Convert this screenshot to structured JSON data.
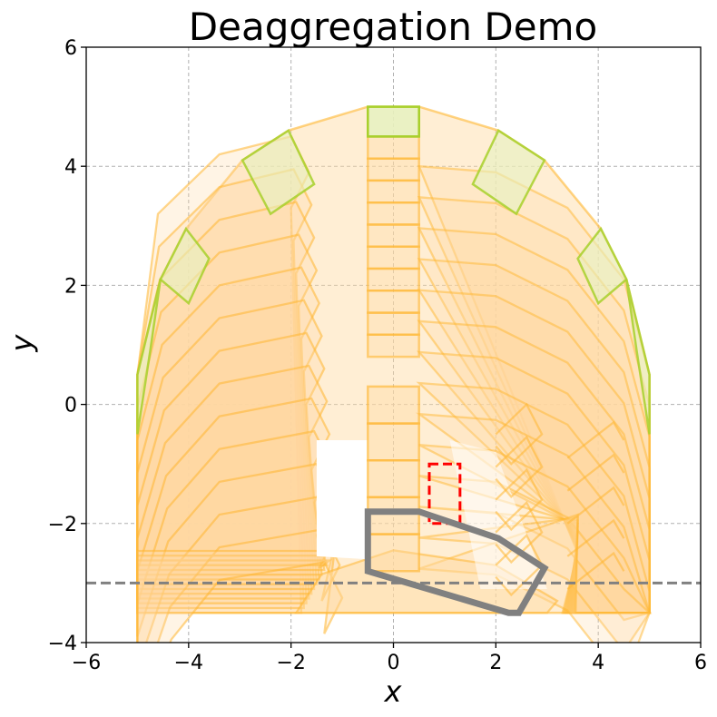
{
  "chart_data": {
    "type": "polygon-plot",
    "title": "Deaggregation Demo",
    "xlabel": "x",
    "ylabel": "y",
    "xlim": [
      -6,
      6
    ],
    "ylim": [
      -4,
      6
    ],
    "xticks": [
      -6,
      -4,
      -2,
      0,
      2,
      4,
      6
    ],
    "yticks": [
      -4,
      -2,
      0,
      2,
      4,
      6
    ],
    "xtick_labels": [
      "−6",
      "−4",
      "−2",
      "0",
      "2",
      "4",
      "6"
    ],
    "ytick_labels": [
      "−4",
      "−2",
      "0",
      "2",
      "4",
      "6"
    ],
    "grid": true,
    "colors": {
      "fill_orange": "#ffd9a0",
      "edge_orange": "#ffb732",
      "fill_green": "#e6f2c0",
      "edge_green": "#a8d02c",
      "red_box": "#ff0000",
      "gray": "#808080",
      "grid": "#b0b0b0"
    },
    "envelope_polygon": [
      [
        -5,
        0.5
      ],
      [
        -5,
        -3.5
      ],
      [
        5,
        -3.5
      ],
      [
        5,
        0.5
      ],
      [
        4.55,
        2.1
      ],
      [
        4.05,
        2.95
      ],
      [
        2.95,
        4.1
      ],
      [
        2.05,
        4.6
      ],
      [
        0.5,
        5
      ],
      [
        -0.5,
        5
      ],
      [
        -2.05,
        4.6
      ],
      [
        -2.95,
        4.1
      ],
      [
        -4.05,
        2.95
      ],
      [
        -4.55,
        2.1
      ]
    ],
    "green_cells": [
      [
        [
          -5,
          0.5
        ],
        [
          -5,
          -0.5
        ],
        [
          -4.75,
          0.9
        ],
        [
          -4.55,
          2.1
        ]
      ],
      [
        [
          -4.55,
          2.1
        ],
        [
          -4.05,
          2.95
        ],
        [
          -3.6,
          2.45
        ],
        [
          -4.0,
          1.7
        ]
      ],
      [
        [
          -2.95,
          4.1
        ],
        [
          -2.05,
          4.6
        ],
        [
          -1.55,
          3.7
        ],
        [
          -2.4,
          3.2
        ]
      ],
      [
        [
          -0.5,
          5
        ],
        [
          0.5,
          5
        ],
        [
          0.5,
          4.5
        ],
        [
          -0.5,
          4.5
        ]
      ],
      [
        [
          2.05,
          4.6
        ],
        [
          2.95,
          4.1
        ],
        [
          2.4,
          3.2
        ],
        [
          1.55,
          3.7
        ]
      ],
      [
        [
          4.05,
          2.95
        ],
        [
          4.55,
          2.1
        ],
        [
          4.0,
          1.7
        ],
        [
          3.6,
          2.45
        ]
      ],
      [
        [
          5,
          0.5
        ],
        [
          5,
          -0.5
        ],
        [
          4.75,
          0.9
        ],
        [
          4.55,
          2.1
        ]
      ]
    ],
    "central_column": {
      "x": [
        -0.5,
        0.5
      ],
      "y_top": 4.5,
      "y_bottom": 0.8,
      "bands": 10
    },
    "central_lower_stack": {
      "x": [
        -0.5,
        0.5
      ],
      "y_top": 0.3,
      "y_bottom": -2.8,
      "bands": 5
    },
    "left_strip_fan": {
      "x_outer": -5,
      "x_inner": -2.0,
      "y_bottom": -3.5,
      "y_top": 4.6,
      "bands": 14
    },
    "right_strip_fan": {
      "x_outer": 5,
      "x_inner": 0.5,
      "y_bottom": -3.5,
      "y_top": 4.5,
      "bands": 14
    },
    "lower_arc_band": [
      [
        -1.9,
        -3.5
      ],
      [
        -1.4,
        -2.85
      ],
      [
        0,
        -2.45
      ],
      [
        2,
        -2.7
      ],
      [
        3.2,
        -3.3
      ],
      [
        3.0,
        -3.5
      ]
    ],
    "inner_cutout": [
      [
        -1.5,
        -0.6
      ],
      [
        -0.5,
        -0.6
      ],
      [
        -0.5,
        -2.6
      ],
      [
        -1.5,
        -2.55
      ]
    ],
    "right_inner_cutout": [
      [
        1.1,
        -0.6
      ],
      [
        2.0,
        -0.8
      ],
      [
        3.0,
        -3.1
      ],
      [
        1.7,
        -3.1
      ]
    ],
    "hline_dashed": {
      "y": -3
    },
    "red_box": {
      "x": [
        0.7,
        1.3
      ],
      "y": [
        -2.0,
        -1.0
      ]
    },
    "gray_polygon": [
      [
        -0.5,
        -1.8
      ],
      [
        0.5,
        -1.8
      ],
      [
        2.05,
        -2.25
      ],
      [
        2.95,
        -2.75
      ],
      [
        2.45,
        -3.5
      ],
      [
        2.25,
        -3.5
      ],
      [
        -0.5,
        -2.8
      ]
    ]
  }
}
